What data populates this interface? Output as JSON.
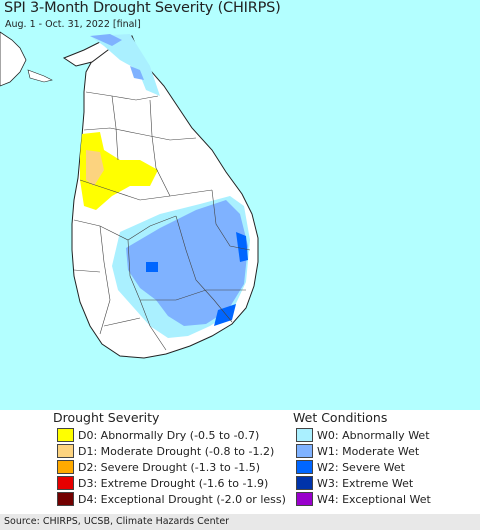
{
  "map": {
    "title": "SPI 3-Month Drought Severity (CHIRPS)",
    "subtitle": "Aug. 1 - Oct. 31, 2022 [final]",
    "ocean_color": "#b3ffff",
    "land_color": "#ffffff"
  },
  "legend": {
    "drought_heading": "Drought Severity",
    "wet_heading": "Wet Conditions",
    "drought_items": [
      {
        "label": "D0: Abnormally Dry (-0.5 to -0.7)",
        "color": "#ffff00"
      },
      {
        "label": "D1: Moderate Drought (-0.8 to -1.2)",
        "color": "#fcd37f"
      },
      {
        "label": "D2: Severe Drought (-1.3 to -1.5)",
        "color": "#ffaa00"
      },
      {
        "label": "D3: Extreme Drought (-1.6 to -1.9)",
        "color": "#e60000"
      },
      {
        "label": "D4: Exceptional Drought (-2.0 or less)",
        "color": "#730000"
      }
    ],
    "wet_items": [
      {
        "label": "W0: Abnormally Wet",
        "color": "#aaf0ff"
      },
      {
        "label": "W1: Moderate Wet",
        "color": "#7fb2ff"
      },
      {
        "label": "W2: Severe Wet",
        "color": "#0066ff"
      },
      {
        "label": "W3: Extreme Wet",
        "color": "#0033aa"
      },
      {
        "label": "W4: Exceptional Wet",
        "color": "#9900cc"
      }
    ]
  },
  "footer": {
    "source": "Source: CHIRPS, UCSB, Climate Hazards Center"
  }
}
